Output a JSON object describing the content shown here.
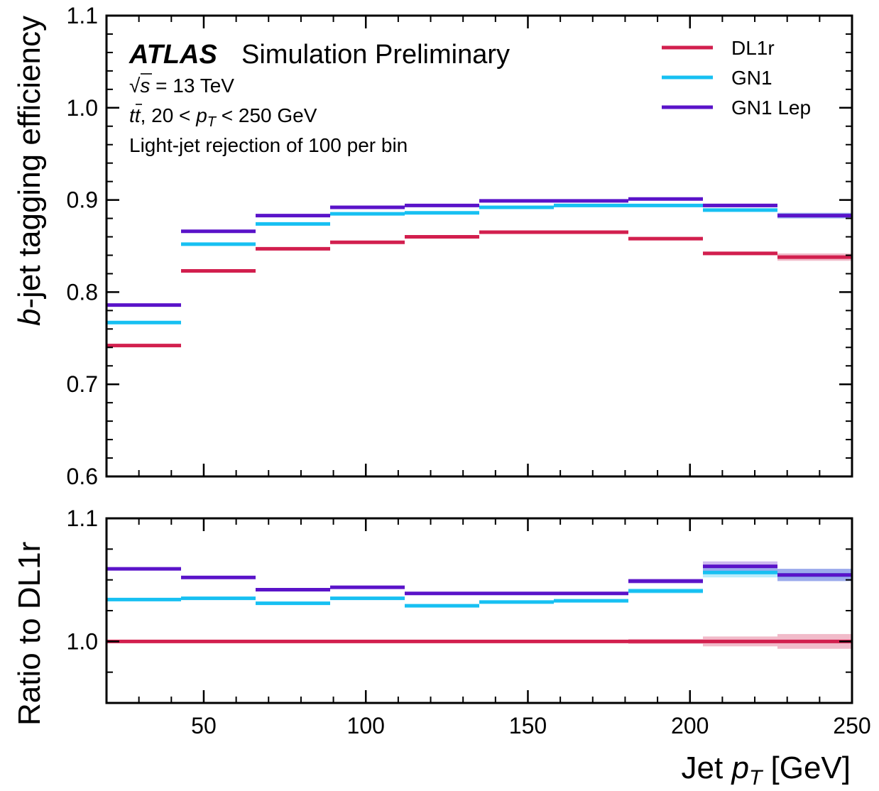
{
  "chart_data": [
    {
      "type": "line",
      "panel": "efficiency",
      "ylabel_prefix": "b",
      "ylabel_rest": "-jet tagging efficiency",
      "ylim": [
        0.6,
        1.1
      ],
      "yticks": [
        "0.6",
        "0.7",
        "0.8",
        "0.9",
        "1.0",
        "1.1"
      ],
      "bin_edges": [
        20,
        43,
        66,
        89,
        112,
        135,
        158,
        181,
        204,
        227,
        250
      ],
      "series": [
        {
          "name": "DL1r",
          "color": "#d21f4e",
          "values": [
            0.742,
            0.823,
            0.847,
            0.854,
            0.86,
            0.865,
            0.865,
            0.858,
            0.842,
            0.838
          ],
          "band": [
            0.001,
            0.001,
            0.001,
            0.001,
            0.001,
            0.001,
            0.001,
            0.001,
            0.002,
            0.004
          ]
        },
        {
          "name": "GN1",
          "color": "#17c0f2",
          "values": [
            0.767,
            0.852,
            0.874,
            0.885,
            0.886,
            0.892,
            0.894,
            0.894,
            0.889,
            0.883
          ],
          "band": [
            0.001,
            0.001,
            0.001,
            0.001,
            0.001,
            0.001,
            0.001,
            0.001,
            0.002,
            0.003
          ]
        },
        {
          "name": "GN1 Lep",
          "color": "#5a13c9",
          "values": [
            0.786,
            0.866,
            0.883,
            0.892,
            0.894,
            0.899,
            0.899,
            0.901,
            0.894,
            0.883
          ],
          "band": [
            0.001,
            0.001,
            0.001,
            0.001,
            0.001,
            0.001,
            0.001,
            0.001,
            0.002,
            0.003
          ]
        }
      ]
    },
    {
      "type": "line",
      "panel": "ratio",
      "ylabel": "Ratio to DL1r",
      "ylim": [
        0.95,
        1.1
      ],
      "yticks": [
        "1.0",
        "1.1"
      ],
      "xlabel_prefix": "Jet ",
      "xlabel_var": "p",
      "xlabel_sub": "T",
      "xlabel_unit": " [GeV]",
      "xlim": [
        20,
        250
      ],
      "xticks": [
        "50",
        "100",
        "150",
        "200",
        "250"
      ],
      "bin_edges": [
        20,
        43,
        66,
        89,
        112,
        135,
        158,
        181,
        204,
        227,
        250
      ],
      "series": [
        {
          "name": "DL1r",
          "color": "#d21f4e",
          "values": [
            1.0,
            1.0,
            1.0,
            1.0,
            1.0,
            1.0,
            1.0,
            1.0,
            1.0,
            1.0
          ],
          "band": [
            0.001,
            0.001,
            0.001,
            0.001,
            0.001,
            0.001,
            0.001,
            0.002,
            0.004,
            0.006
          ]
        },
        {
          "name": "GN1",
          "color": "#17c0f2",
          "values": [
            1.034,
            1.035,
            1.031,
            1.035,
            1.029,
            1.032,
            1.033,
            1.041,
            1.056,
            1.054
          ],
          "band": [
            0.001,
            0.001,
            0.001,
            0.001,
            0.001,
            0.001,
            0.001,
            0.002,
            0.004,
            0.005
          ]
        },
        {
          "name": "GN1 Lep",
          "color": "#5a13c9",
          "values": [
            1.059,
            1.052,
            1.042,
            1.044,
            1.039,
            1.039,
            1.039,
            1.049,
            1.061,
            1.054
          ],
          "band": [
            0.001,
            0.001,
            0.001,
            0.001,
            0.001,
            0.001,
            0.001,
            0.002,
            0.004,
            0.005
          ]
        }
      ]
    }
  ],
  "annotation": {
    "atlas_label": "ATLAS",
    "atlas_suffix": "Simulation Preliminary",
    "energy_sqrt": "√",
    "energy_s": "s",
    "energy_rest": " = 13 TeV",
    "sample_t1": "t",
    "sample_t2": "t",
    "sample_mid": ", 20 < ",
    "sample_var": "p",
    "sample_sub": "T",
    "sample_end": " < 250 GeV",
    "working_point": "Light-jet rejection of 100 per bin"
  }
}
